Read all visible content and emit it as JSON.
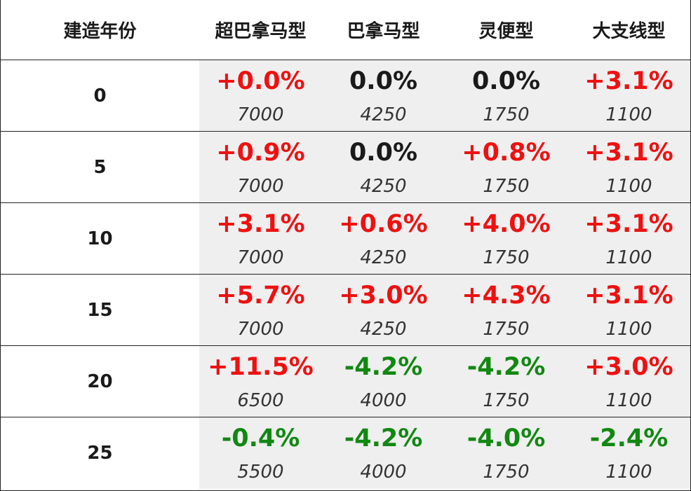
{
  "header": {
    "year": "建造年份",
    "col1": "超巴拿马型",
    "col2": "巴拿马型",
    "col3": "灵便型",
    "col4": "大支线型"
  },
  "colors": {
    "positive": "#ee1111",
    "neutral": "#1a1a1a",
    "negative": "#118811",
    "value_background": "#efefef"
  },
  "rows": [
    {
      "year": "0",
      "cells": [
        {
          "pct": "+0.0%",
          "price": "7000",
          "tone": "positive"
        },
        {
          "pct": "0.0%",
          "price": "4250",
          "tone": "neutral"
        },
        {
          "pct": "0.0%",
          "price": "1750",
          "tone": "neutral"
        },
        {
          "pct": "+3.1%",
          "price": "1100",
          "tone": "positive"
        }
      ]
    },
    {
      "year": "5",
      "cells": [
        {
          "pct": "+0.9%",
          "price": "7000",
          "tone": "positive"
        },
        {
          "pct": "0.0%",
          "price": "4250",
          "tone": "neutral"
        },
        {
          "pct": "+0.8%",
          "price": "1750",
          "tone": "positive"
        },
        {
          "pct": "+3.1%",
          "price": "1100",
          "tone": "positive"
        }
      ]
    },
    {
      "year": "10",
      "cells": [
        {
          "pct": "+3.1%",
          "price": "7000",
          "tone": "positive"
        },
        {
          "pct": "+0.6%",
          "price": "4250",
          "tone": "positive"
        },
        {
          "pct": "+4.0%",
          "price": "1750",
          "tone": "positive"
        },
        {
          "pct": "+3.1%",
          "price": "1100",
          "tone": "positive"
        }
      ]
    },
    {
      "year": "15",
      "cells": [
        {
          "pct": "+5.7%",
          "price": "7000",
          "tone": "positive"
        },
        {
          "pct": "+3.0%",
          "price": "4250",
          "tone": "positive"
        },
        {
          "pct": "+4.3%",
          "price": "1750",
          "tone": "positive"
        },
        {
          "pct": "+3.1%",
          "price": "1100",
          "tone": "positive"
        }
      ]
    },
    {
      "year": "20",
      "cells": [
        {
          "pct": "+11.5%",
          "price": "6500",
          "tone": "positive"
        },
        {
          "pct": "-4.2%",
          "price": "4000",
          "tone": "negative"
        },
        {
          "pct": "-4.2%",
          "price": "1750",
          "tone": "negative"
        },
        {
          "pct": "+3.0%",
          "price": "1100",
          "tone": "positive"
        }
      ]
    },
    {
      "year": "25",
      "cells": [
        {
          "pct": "-0.4%",
          "price": "5500",
          "tone": "negative"
        },
        {
          "pct": "-4.2%",
          "price": "4000",
          "tone": "negative"
        },
        {
          "pct": "-4.0%",
          "price": "1750",
          "tone": "negative"
        },
        {
          "pct": "-2.4%",
          "price": "1100",
          "tone": "negative"
        }
      ]
    }
  ]
}
